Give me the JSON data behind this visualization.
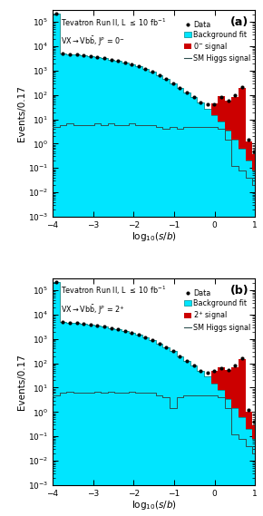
{
  "xlim": [
    -4,
    1
  ],
  "ylim": [
    0.001,
    300000.0
  ],
  "bin_edges": [
    -4.0,
    -3.83,
    -3.66,
    -3.49,
    -3.32,
    -3.15,
    -2.98,
    -2.81,
    -2.64,
    -2.47,
    -2.3,
    -2.13,
    -1.96,
    -1.79,
    -1.62,
    -1.45,
    -1.28,
    -1.11,
    -0.94,
    -0.77,
    -0.6,
    -0.43,
    -0.26,
    -0.09,
    0.08,
    0.25,
    0.42,
    0.59,
    0.76,
    0.93,
    1.0
  ],
  "bg_a": [
    220000.0,
    5000,
    4700,
    4500,
    4200,
    3900,
    3500,
    3200,
    2800,
    2500,
    2200,
    1800,
    1500,
    1150,
    900,
    650,
    460,
    310,
    200,
    130,
    80,
    48,
    28,
    15,
    8.0,
    3.5,
    1.5,
    0.6,
    0.2,
    0.08
  ],
  "signal_a": [
    0,
    0,
    0,
    0,
    0,
    0,
    0,
    0,
    0,
    0,
    0,
    0,
    0,
    0,
    0,
    0,
    0,
    0,
    0,
    0,
    0,
    0,
    0,
    30,
    80,
    55,
    80,
    200,
    1.0,
    0.3
  ],
  "sm_higgs_a": [
    5,
    6,
    7,
    6,
    6,
    6,
    7,
    6,
    7,
    6,
    6,
    7,
    6,
    6,
    6,
    5,
    4,
    5,
    4,
    5,
    5,
    5,
    5,
    5,
    4,
    1.5,
    0.12,
    0.08,
    0.04,
    0.02
  ],
  "data_a": [
    220000.0,
    5000,
    4700,
    4500,
    4200,
    3900,
    3500,
    3200,
    2800,
    2500,
    2200,
    1800,
    1500,
    1150,
    900,
    650,
    460,
    310,
    200,
    130,
    80,
    48,
    42,
    40,
    85,
    60,
    95,
    210,
    1.5,
    0.5
  ],
  "bg_b": [
    220000.0,
    5000,
    4700,
    4500,
    4200,
    3900,
    3500,
    3200,
    2800,
    2500,
    2200,
    1800,
    1500,
    1150,
    900,
    650,
    460,
    310,
    200,
    130,
    80,
    48,
    28,
    15,
    8.0,
    3.5,
    1.5,
    0.6,
    0.2,
    0.08
  ],
  "signal_b": [
    0,
    0,
    0,
    0,
    0,
    0,
    0,
    0,
    0,
    0,
    0,
    0,
    0,
    0,
    0,
    0,
    0,
    0,
    0,
    0,
    0,
    0,
    0,
    35,
    60,
    50,
    70,
    150,
    0.8,
    0.2
  ],
  "sm_higgs_b": [
    5,
    6,
    7,
    6,
    6,
    6,
    7,
    6,
    7,
    6,
    6,
    7,
    6,
    6,
    6,
    5,
    4,
    1.5,
    4,
    5,
    5,
    5,
    5,
    5,
    4,
    1.5,
    0.12,
    0.08,
    0.04,
    0.02
  ],
  "data_b": [
    220000.0,
    5000,
    4700,
    4500,
    4200,
    3900,
    3500,
    3200,
    2800,
    2500,
    2200,
    1800,
    1500,
    1150,
    900,
    650,
    460,
    310,
    200,
    130,
    80,
    48,
    42,
    50,
    65,
    55,
    80,
    160,
    1.2,
    0.4
  ],
  "bg_color": "#00E5FF",
  "bg_edge_color": "#008B8B",
  "signal_color": "#CC0000",
  "data_color": "#000000",
  "sm_color": "#2F4F4F",
  "xlabel": "$\\mathrm{log}_{10}(s/b)$",
  "ylabel": "Events/0.17",
  "label_a_line1": "Tevatron Run II, L $\\leq$ 10 fb$^{-1}$",
  "label_a_line2": "VX$\\rightarrow$Vb$\\bar{\\mathrm{b}}$, J$^{P}$ = 0$^{-}$",
  "label_b_line1": "Tevatron Run II, L $\\leq$ 10 fb$^{-1}$",
  "label_b_line2": "VX$\\rightarrow$Vb$\\bar{\\mathrm{b}}$, J$^{P}$ = 2$^{+}$",
  "legend_entries_a": [
    "Data",
    "Background fit",
    "0$^{-}$ signal",
    "SM Higgs signal"
  ],
  "legend_entries_b": [
    "Data",
    "Background fit",
    "2$^{+}$ signal",
    "SM Higgs signal"
  ],
  "panel_labels": [
    "(a)",
    "(b)"
  ]
}
